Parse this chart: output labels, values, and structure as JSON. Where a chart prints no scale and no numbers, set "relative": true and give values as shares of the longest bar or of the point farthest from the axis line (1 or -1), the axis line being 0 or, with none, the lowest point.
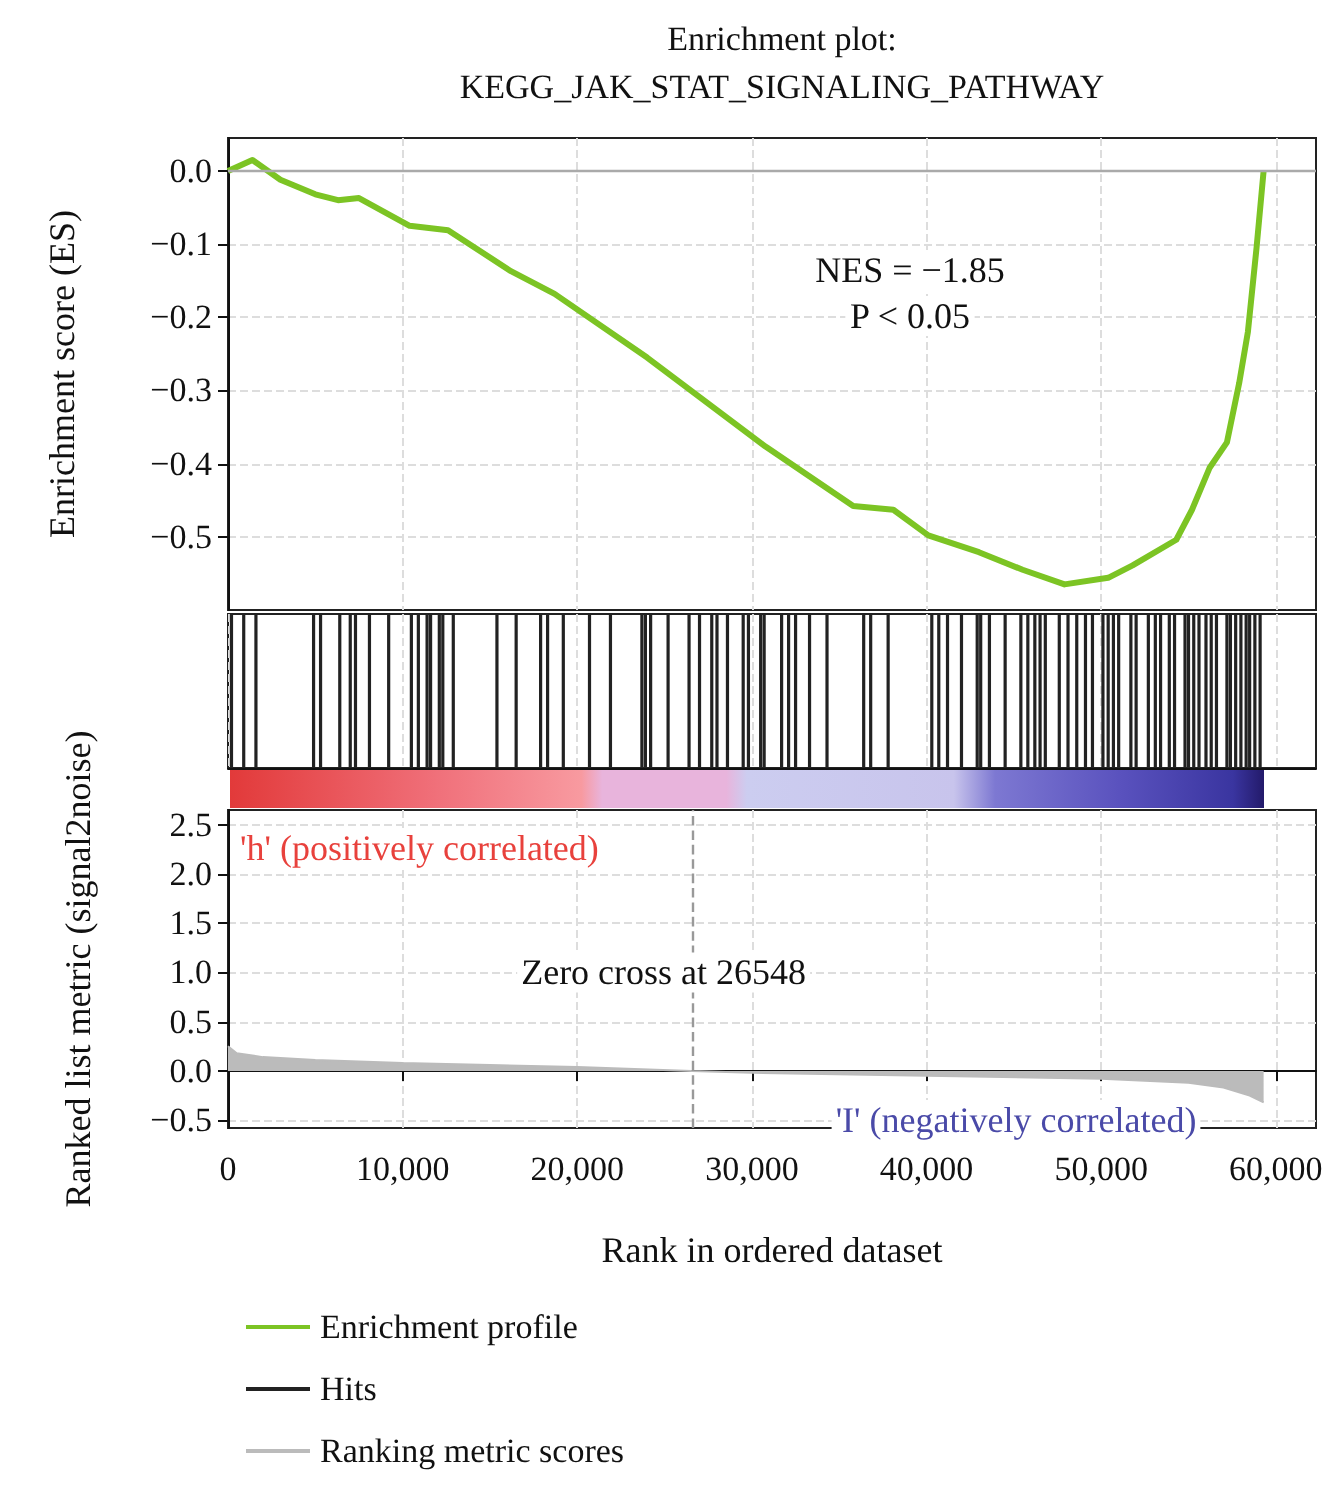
{
  "chart_data": [
    {
      "type": "line",
      "title": "Enrichment plot:",
      "subtitle": "KEGG_JAK_STAT_SIGNALING_PATHWAY",
      "ylabel": "Enrichment score (ES)",
      "x": [
        0,
        1400,
        3000,
        5000,
        6300,
        7500,
        10400,
        12600,
        16200,
        18700,
        24000,
        30800,
        35800,
        38100,
        40100,
        43000,
        45500,
        47900,
        50400,
        51800,
        54300,
        55200,
        56200,
        57200,
        57900,
        58400,
        58900,
        59300
      ],
      "series": [
        {
          "name": "Enrichment profile",
          "color": "#7cc424",
          "values": [
            0,
            0.015,
            -0.012,
            -0.032,
            -0.04,
            -0.037,
            -0.075,
            -0.081,
            -0.137,
            -0.168,
            -0.255,
            -0.377,
            -0.458,
            -0.463,
            -0.498,
            -0.521,
            -0.545,
            -0.565,
            -0.556,
            -0.539,
            -0.504,
            -0.463,
            -0.406,
            -0.371,
            -0.29,
            -0.22,
            -0.104,
            0
          ]
        }
      ],
      "xlim": [
        0,
        62300
      ],
      "xticks": [
        0,
        10000,
        20000,
        30000,
        40000,
        50000,
        60000
      ],
      "ylim": [
        -0.6,
        0.045
      ],
      "yticks": [
        {
          "value": -0.5,
          "label": "−0.5"
        },
        {
          "value": -0.4,
          "label": "−0.4"
        },
        {
          "value": -0.3,
          "label": "−0.3"
        },
        {
          "value": -0.2,
          "label": "−0.2"
        },
        {
          "value": -0.1,
          "label": "−0.1"
        },
        {
          "value": 0,
          "label": "0.0"
        }
      ],
      "ref_lines": [
        {
          "axis": "y",
          "value": 0,
          "color": "#aaaaaa"
        }
      ],
      "annotations": [
        "NES = −1.85",
        "P < 0.05"
      ],
      "grid": true,
      "tick_labels": "y",
      "legend": "bottom"
    },
    {
      "type": "bar",
      "relative": true,
      "x": [
        200,
        900,
        1600,
        4900,
        5300,
        6400,
        7000,
        7300,
        8100,
        9200,
        10500,
        10900,
        11400,
        11600,
        12100,
        12300,
        12900,
        15400,
        16500,
        17900,
        18300,
        19200,
        20700,
        21900,
        23700,
        23900,
        24200,
        25200,
        26400,
        27000,
        27700,
        28000,
        28600,
        29500,
        29800,
        30500,
        30700,
        31700,
        32100,
        32500,
        33300,
        34300,
        36400,
        36800,
        37800,
        40300,
        40700,
        41200,
        42000,
        42900,
        43100,
        43600,
        44500,
        45400,
        45800,
        46200,
        46500,
        46800,
        47600,
        48100,
        48600,
        49100,
        49500,
        50100,
        50400,
        50700,
        51000,
        51700,
        52000,
        52700,
        53100,
        53400,
        53900,
        54200,
        54800,
        55000,
        55300,
        55600,
        56000,
        56300,
        56600,
        57200,
        57400,
        57700,
        58000,
        58300,
        58500,
        58800,
        59100
      ],
      "series": [
        {
          "name": "Hits",
          "color": "#222222",
          "values": [
            1,
            1,
            1,
            1,
            1,
            1,
            1,
            1,
            1,
            1,
            1,
            1,
            1,
            1,
            1,
            1,
            1,
            1,
            1,
            1,
            1,
            1,
            1,
            1,
            1,
            1,
            1,
            1,
            1,
            1,
            1,
            1,
            1,
            1,
            1,
            1,
            1,
            1,
            1,
            1,
            1,
            1,
            1,
            1,
            1,
            1,
            1,
            1,
            1,
            1,
            1,
            1,
            1,
            1,
            1,
            1,
            1,
            1,
            1,
            1,
            1,
            1,
            1,
            1,
            1,
            1,
            1,
            1,
            1,
            1,
            1,
            1,
            1,
            1,
            1,
            1,
            1,
            1,
            1,
            1,
            1,
            1,
            1,
            1,
            1,
            1,
            1,
            1,
            1
          ]
        }
      ],
      "xlim": [
        0,
        62300
      ],
      "xticks": [
        0,
        10000,
        20000,
        30000,
        40000,
        50000,
        60000
      ],
      "grid": "x",
      "tick_labels": false,
      "legend": "bottom"
    },
    {
      "type": "area",
      "xlabel": "Rank in ordered dataset",
      "ylabel": "Ranked list metric (signal2noise)",
      "x": [
        0,
        500,
        2000,
        5000,
        10000,
        15000,
        20000,
        26548,
        30000,
        40000,
        50000,
        55000,
        57000,
        58500,
        59300
      ],
      "series": [
        {
          "name": "Ranking metric scores",
          "color": "#bbbbbb",
          "values": [
            0.25,
            0.18,
            0.14,
            0.11,
            0.08,
            0.06,
            0.04,
            0,
            -0.02,
            -0.05,
            -0.08,
            -0.12,
            -0.17,
            -0.25,
            -0.32
          ]
        }
      ],
      "xlim": [
        0,
        62300
      ],
      "xticks": [
        {
          "value": 0,
          "label": "0"
        },
        {
          "value": 10000,
          "label": "10,000"
        },
        {
          "value": 20000,
          "label": "20,000"
        },
        {
          "value": 30000,
          "label": "30,000"
        },
        {
          "value": 40000,
          "label": "40,000"
        },
        {
          "value": 50000,
          "label": "50,000"
        },
        {
          "value": 60000,
          "label": "60,000"
        }
      ],
      "ylim": [
        -0.58,
        2.65
      ],
      "yticks": [
        {
          "value": -0.5,
          "label": "−0.5"
        },
        {
          "value": 0,
          "label": "0.0"
        },
        {
          "value": 0.5,
          "label": "0.5"
        },
        {
          "value": 1,
          "label": "1.0"
        },
        {
          "value": 1.5,
          "label": "1.5"
        },
        {
          "value": 2,
          "label": "2.0"
        },
        {
          "value": 2.5,
          "label": "2.5"
        }
      ],
      "ref_lines": [
        {
          "axis": "x",
          "value": 26548,
          "color": "#999999",
          "line_style": "dashed"
        }
      ],
      "annotations": [
        "'h' (positively correlated)",
        {
          "text": "Zero cross at 26548",
          "x": 26548,
          "y": 1.0
        },
        "'I' (negatively correlated)"
      ],
      "grid": true,
      "legend": "bottom"
    }
  ]
}
